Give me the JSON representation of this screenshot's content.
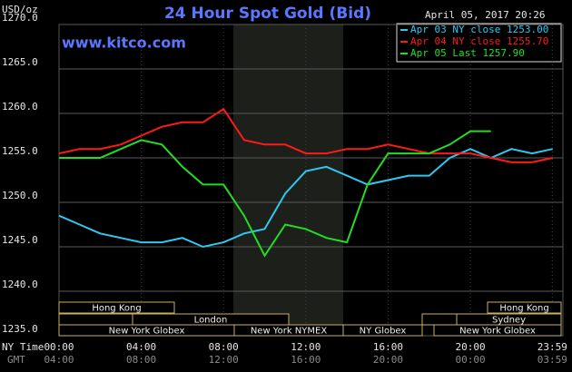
{
  "chart_data": {
    "type": "line",
    "title": "24 Hour Spot Gold (Bid)",
    "y_label": "USD/oz",
    "date": "April 05, 2017 20:26",
    "website": "www.kitco.com",
    "x_label": "NY Time",
    "x2_label": "GMT",
    "x": [
      0,
      1,
      2,
      3,
      4,
      5,
      6,
      7,
      8,
      9,
      10,
      11,
      12,
      13,
      14,
      15,
      16,
      17,
      18,
      19,
      20,
      21,
      22,
      23,
      24
    ],
    "xlim": [
      0,
      24.5
    ],
    "xticks": [
      {
        "value": 0,
        "label": "00:00"
      },
      {
        "value": 4,
        "label": "04:00"
      },
      {
        "value": 8,
        "label": "08:00"
      },
      {
        "value": 12,
        "label": "12:00"
      },
      {
        "value": 16,
        "label": "16:00"
      },
      {
        "value": 20,
        "label": "20:00"
      },
      {
        "value": 23.983,
        "label": "23:59"
      }
    ],
    "x2ticks": [
      "04:00",
      "08:00",
      "12:00",
      "16:00",
      "20:00",
      "00:00",
      "03:59"
    ],
    "ylim": [
      1235,
      1270
    ],
    "yticks": [
      {
        "value": 1235,
        "label": "1235.0"
      },
      {
        "value": 1240,
        "label": "1240.0"
      },
      {
        "value": 1245,
        "label": "1245.0"
      },
      {
        "value": 1250,
        "label": "1250.0"
      },
      {
        "value": 1255,
        "label": "1255.0"
      },
      {
        "value": 1260,
        "label": "1260.0"
      },
      {
        "value": 1265,
        "label": "1265.0"
      },
      {
        "value": 1270,
        "label": "1270.0"
      }
    ],
    "grid": true,
    "legend": "top-right",
    "series": [
      {
        "name": "Apr 03 NY close 1253.00",
        "color": "#2ec8f0",
        "values": [
          1248.5,
          1247.5,
          1246.5,
          1246,
          1245.5,
          1245.5,
          1246,
          1245,
          1245.5,
          1246.5,
          1247,
          1251,
          1253.5,
          1254,
          1253,
          1252,
          1252.5,
          1253,
          1253,
          1255,
          1256,
          1255,
          1256,
          1255.5,
          1256
        ]
      },
      {
        "name": "Apr 04 NY close 1255.70",
        "color": "#ff1a1a",
        "values": [
          1255.5,
          1256,
          1256,
          1256.5,
          1257.5,
          1258.5,
          1259,
          1259,
          1260.5,
          1257,
          1256.5,
          1256.5,
          1255.5,
          1255.5,
          1256,
          1256,
          1256.5,
          1256,
          1255.5,
          1255.5,
          1255.5,
          1255,
          1254.5,
          1254.5,
          1255
        ]
      },
      {
        "name": "Apr 05 Last 1257.90",
        "color": "#22dd22",
        "values": [
          1255,
          1255,
          1255,
          1256,
          1257,
          1256.5,
          1254,
          1252,
          1252,
          1248.5,
          1244,
          1247.5,
          1247,
          1246,
          1245.5,
          1252,
          1255.5,
          1255.5,
          1255.5,
          1256.5,
          1258,
          1258,
          null,
          null,
          null
        ]
      }
    ],
    "sessions": [
      "Hong Kong",
      "London",
      "New York Globex",
      "New York NYMEX",
      "NY Globex",
      "Hong Kong",
      "Sydney",
      "New York Globex"
    ]
  }
}
